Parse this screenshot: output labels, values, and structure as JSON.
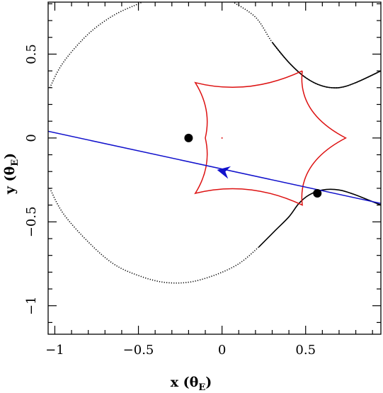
{
  "chart_data": {
    "type": "line",
    "xlabel": "x (θ",
    "xlabel_sub": "E",
    "xlabel_tail": ")",
    "ylabel": "y (θ",
    "ylabel_sub": "E",
    "ylabel_tail": ")",
    "xlim": [
      -1.04,
      0.95
    ],
    "ylim": [
      -1.17,
      0.81
    ],
    "xticks": [
      -1,
      -0.5,
      0,
      0.5
    ],
    "xtick_labels": [
      "−1",
      "−0.5",
      "0",
      "0.5"
    ],
    "yticks": [
      -1,
      -0.5,
      0,
      0.5
    ],
    "ytick_labels": [
      "−1",
      "−0.5",
      "0",
      "0.5"
    ],
    "grid": false,
    "colors": {
      "critical_curve": "#000000",
      "caustic": "#dd1111",
      "trajectory": "#1111cc",
      "lens": "#000000"
    },
    "caustic": {
      "cusps": [
        [
          0.48,
          0.4
        ],
        [
          0.74,
          0.0
        ],
        [
          0.48,
          -0.4
        ],
        [
          -0.16,
          -0.33
        ],
        [
          -0.1,
          0.0
        ],
        [
          -0.16,
          0.33
        ]
      ],
      "fold_points": [
        [
          0.42,
          0.0
        ],
        [
          0.05,
          0.3
        ],
        [
          0.3,
          0.29
        ],
        [
          0.05,
          -0.3
        ],
        [
          0.3,
          -0.29
        ],
        [
          0.02,
          0.02
        ]
      ]
    },
    "critical_curve_upper": [
      [
        -1.03,
        0.3
      ],
      [
        -0.95,
        0.45
      ],
      [
        -0.8,
        0.62
      ],
      [
        -0.65,
        0.73
      ],
      [
        -0.5,
        0.8
      ],
      [
        -0.45,
        0.82
      ]
    ],
    "critical_curve_upper_right": [
      [
        0.05,
        0.82
      ],
      [
        0.2,
        0.72
      ],
      [
        0.3,
        0.57
      ],
      [
        0.4,
        0.45
      ],
      [
        0.5,
        0.36
      ],
      [
        0.6,
        0.31
      ],
      [
        0.7,
        0.3
      ],
      [
        0.8,
        0.33
      ],
      [
        0.95,
        0.4
      ]
    ],
    "critical_curve_lower": [
      [
        -1.03,
        -0.3
      ],
      [
        -0.95,
        -0.45
      ],
      [
        -0.8,
        -0.62
      ],
      [
        -0.65,
        -0.75
      ],
      [
        -0.5,
        -0.82
      ],
      [
        -0.35,
        -0.86
      ],
      [
        -0.2,
        -0.86
      ],
      [
        -0.05,
        -0.82
      ],
      [
        0.1,
        -0.75
      ],
      [
        0.22,
        -0.65
      ],
      [
        0.32,
        -0.55
      ],
      [
        0.4,
        -0.47
      ],
      [
        0.46,
        -0.39
      ],
      [
        0.52,
        -0.34
      ],
      [
        0.6,
        -0.31
      ],
      [
        0.7,
        -0.31
      ],
      [
        0.8,
        -0.34
      ],
      [
        0.95,
        -0.4
      ]
    ],
    "trajectory": {
      "start": [
        0.95,
        -0.39
      ],
      "end": [
        -1.04,
        0.04
      ],
      "arrow_at": [
        -0.03,
        -0.19
      ]
    },
    "lenses": [
      [
        -0.2,
        0.0
      ],
      [
        0.57,
        -0.33
      ]
    ],
    "centre_dot": [
      0.0,
      0.0
    ]
  }
}
